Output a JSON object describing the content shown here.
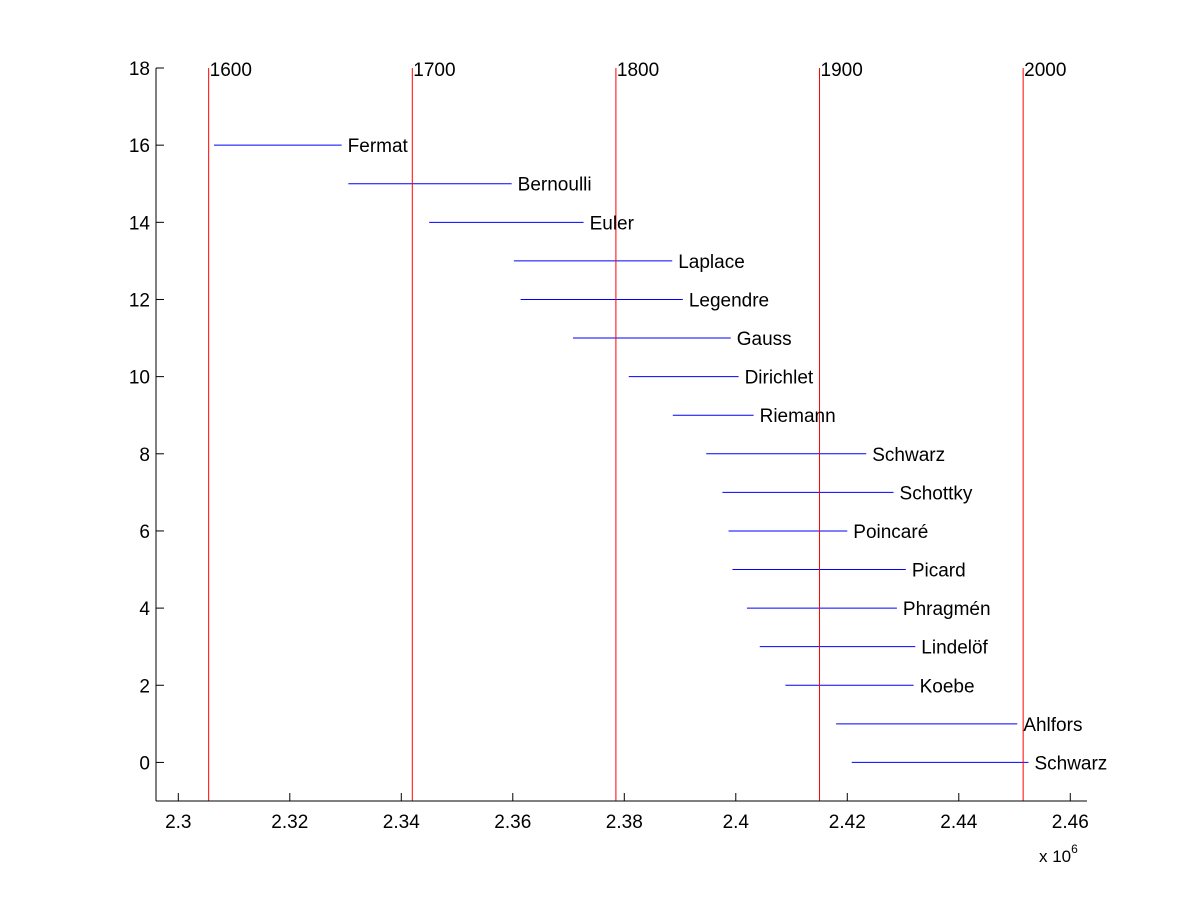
{
  "chart_data": {
    "type": "timeline",
    "title": "",
    "xlabel": "",
    "ylabel": "",
    "x_multiplier_label": "x 10",
    "x_multiplier_exponent": "6",
    "xlim": [
      2296000,
      2463000
    ],
    "ylim": [
      -1,
      18
    ],
    "x_ticks": [
      2300000,
      2320000,
      2340000,
      2360000,
      2380000,
      2400000,
      2420000,
      2440000,
      2460000
    ],
    "x_tick_labels": [
      "2.3",
      "2.32",
      "2.34",
      "2.36",
      "2.38",
      "2.4",
      "2.42",
      "2.44",
      "2.46"
    ],
    "y_ticks": [
      0,
      2,
      4,
      6,
      8,
      10,
      12,
      14,
      16,
      18
    ],
    "y_tick_labels": [
      "0",
      "2",
      "4",
      "6",
      "8",
      "10",
      "12",
      "14",
      "16",
      "18"
    ],
    "grid": false,
    "line_color": "#0000ff",
    "marker_color": "#ff0000",
    "year_markers": [
      {
        "label": "1600",
        "x": 2305448
      },
      {
        "label": "1700",
        "x": 2341973
      },
      {
        "label": "1800",
        "x": 2378497
      },
      {
        "label": "1900",
        "x": 2415021
      },
      {
        "label": "2000",
        "x": 2451545
      }
    ],
    "series": [
      {
        "name": "Fermat",
        "y": 16,
        "start": 2306400,
        "end": 2329300
      },
      {
        "name": "Bernoulli",
        "y": 15,
        "start": 2330500,
        "end": 2359800
      },
      {
        "name": "Euler",
        "y": 14,
        "start": 2345000,
        "end": 2372700
      },
      {
        "name": "Laplace",
        "y": 13,
        "start": 2360200,
        "end": 2388600
      },
      {
        "name": "Legendre",
        "y": 12,
        "start": 2361400,
        "end": 2390500
      },
      {
        "name": "Gauss",
        "y": 11,
        "start": 2370800,
        "end": 2399100
      },
      {
        "name": "Dirichlet",
        "y": 10,
        "start": 2380800,
        "end": 2400500
      },
      {
        "name": "Riemann",
        "y": 9,
        "start": 2388700,
        "end": 2403200
      },
      {
        "name": "Schwarz",
        "y": 8,
        "start": 2394700,
        "end": 2423400
      },
      {
        "name": "Schottky",
        "y": 7,
        "start": 2397600,
        "end": 2428300
      },
      {
        "name": "Poincaré",
        "y": 6,
        "start": 2398700,
        "end": 2420000
      },
      {
        "name": "Picard",
        "y": 5,
        "start": 2399400,
        "end": 2430500
      },
      {
        "name": "Phragmén",
        "y": 4,
        "start": 2402000,
        "end": 2428900
      },
      {
        "name": "Lindelöf",
        "y": 3,
        "start": 2404300,
        "end": 2432200
      },
      {
        "name": "Koebe",
        "y": 2,
        "start": 2408900,
        "end": 2431900
      },
      {
        "name": "Ahlfors",
        "y": 1,
        "start": 2418000,
        "end": 2450500
      },
      {
        "name": "Schwarz",
        "y": 0,
        "start": 2420800,
        "end": 2452500
      }
    ]
  }
}
